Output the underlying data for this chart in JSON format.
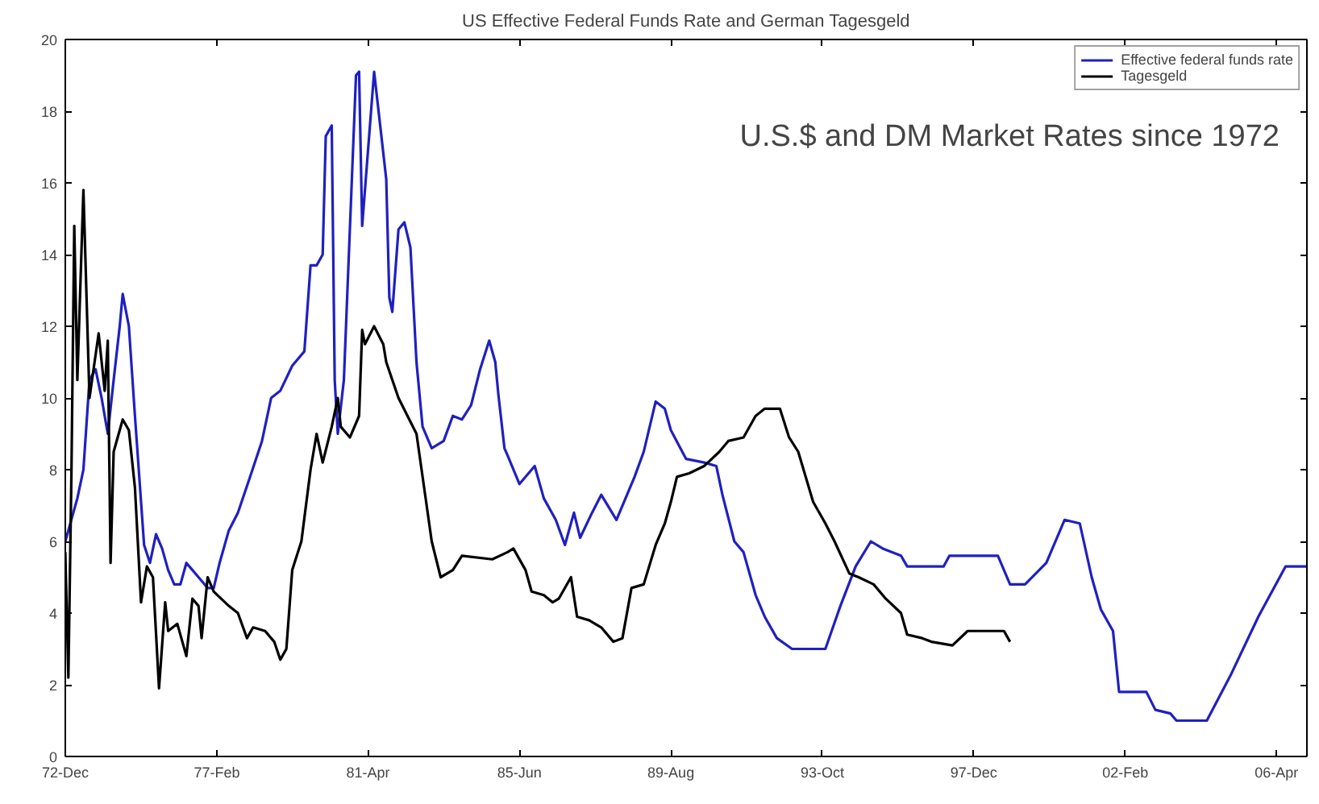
{
  "chart_data": {
    "type": "line",
    "title": "US Effective Federal Funds Rate and German Tagesgeld",
    "annotations": [
      "U.S.$ and DM Market Rates since 1972"
    ],
    "xlim": [
      "1972-12",
      "2007-02"
    ],
    "ylim": [
      0,
      20
    ],
    "xticks": [
      {
        "value": "1972-12",
        "label": "72-Dec"
      },
      {
        "value": "1977-02",
        "label": "77-Feb"
      },
      {
        "value": "1981-04",
        "label": "81-Apr"
      },
      {
        "value": "1985-06",
        "label": "85-Jun"
      },
      {
        "value": "1989-08",
        "label": "89-Aug"
      },
      {
        "value": "1993-10",
        "label": "93-Oct"
      },
      {
        "value": "1997-12",
        "label": "97-Dec"
      },
      {
        "value": "2002-02",
        "label": "02-Feb"
      },
      {
        "value": "2006-04",
        "label": "06-Apr"
      }
    ],
    "yticks": [
      0,
      2,
      4,
      6,
      8,
      10,
      12,
      14,
      16,
      18,
      20
    ],
    "grid": false,
    "legend": "top right",
    "marker": "none",
    "line_style": "solid",
    "series": [
      {
        "name": "Effective federal funds rate",
        "color": "#2020c0",
        "x": [
          "1972-12",
          "1973-04",
          "1973-06",
          "1973-08",
          "1973-10",
          "1973-12",
          "1974-02",
          "1974-04",
          "1974-06",
          "1974-07",
          "1974-09",
          "1974-11",
          "1975-02",
          "1975-04",
          "1975-06",
          "1975-08",
          "1975-10",
          "1975-12",
          "1976-02",
          "1976-04",
          "1976-06",
          "1976-08",
          "1976-11",
          "1977-01",
          "1977-03",
          "1977-06",
          "1977-09",
          "1978-01",
          "1978-05",
          "1978-08",
          "1978-11",
          "1979-03",
          "1979-07",
          "1979-09",
          "1979-11",
          "1980-01",
          "1980-02",
          "1980-04",
          "1980-05",
          "1980-06",
          "1980-08",
          "1980-12",
          "1981-01",
          "1981-02",
          "1981-06",
          "1981-10",
          "1981-11",
          "1981-12",
          "1982-02",
          "1982-04",
          "1982-06",
          "1982-08",
          "1982-10",
          "1983-01",
          "1983-05",
          "1983-08",
          "1983-11",
          "1984-02",
          "1984-05",
          "1984-08",
          "1984-10",
          "1984-11",
          "1985-01",
          "1985-02",
          "1985-06",
          "1985-11",
          "1986-02",
          "1986-06",
          "1986-09",
          "1986-12",
          "1987-02",
          "1987-06",
          "1987-09",
          "1988-02",
          "1988-08",
          "1988-11",
          "1989-03",
          "1989-06",
          "1989-08",
          "1990-01",
          "1990-07",
          "1990-11",
          "1991-01",
          "1991-05",
          "1991-08",
          "1991-12",
          "1992-03",
          "1992-07",
          "1992-12",
          "1993-11",
          "1994-04",
          "1994-09",
          "1995-02",
          "1995-06",
          "1995-12",
          "1996-02",
          "1997-02",
          "1997-04",
          "1998-08",
          "1998-12",
          "1999-05",
          "1999-12",
          "2000-06",
          "2000-11",
          "2001-03",
          "2001-06",
          "2001-10",
          "2001-12",
          "2002-09",
          "2002-12",
          "2003-05",
          "2003-07",
          "2004-05",
          "2005-01",
          "2005-10",
          "2006-07",
          "2007-02"
        ],
        "values": [
          6.0,
          7.2,
          8.0,
          10.5,
          10.8,
          10.0,
          9.0,
          10.5,
          12.0,
          12.9,
          12.0,
          9.5,
          5.9,
          5.4,
          6.2,
          5.8,
          5.2,
          4.8,
          4.8,
          5.4,
          5.2,
          5.0,
          4.7,
          4.7,
          5.4,
          6.3,
          6.8,
          7.8,
          8.8,
          10.0,
          10.2,
          10.9,
          11.3,
          13.7,
          13.7,
          14.0,
          17.3,
          17.6,
          10.5,
          9.0,
          10.5,
          19.0,
          19.1,
          14.8,
          19.1,
          16.1,
          12.8,
          12.4,
          14.7,
          14.9,
          14.2,
          11.0,
          9.2,
          8.6,
          8.8,
          9.5,
          9.4,
          9.8,
          10.8,
          11.6,
          11.0,
          10.1,
          8.6,
          8.4,
          7.6,
          8.1,
          7.2,
          6.6,
          5.9,
          6.8,
          6.1,
          6.8,
          7.3,
          6.6,
          7.8,
          8.5,
          9.9,
          9.7,
          9.1,
          8.3,
          8.2,
          8.1,
          7.3,
          6.0,
          5.7,
          4.5,
          3.9,
          3.3,
          3.0,
          3.0,
          4.2,
          5.3,
          6.0,
          5.8,
          5.6,
          5.3,
          5.3,
          5.6,
          5.6,
          4.8,
          4.8,
          5.4,
          6.6,
          6.5,
          5.0,
          4.1,
          3.5,
          1.8,
          1.8,
          1.3,
          1.2,
          1.0,
          1.0,
          2.3,
          3.9,
          5.3,
          5.3
        ]
      },
      {
        "name": "Tagesgeld",
        "color": "#000000",
        "x": [
          "1972-12",
          "1973-01",
          "1973-02",
          "1973-03",
          "1973-04",
          "1973-06",
          "1973-08",
          "1973-11",
          "1974-01",
          "1974-02",
          "1974-03",
          "1974-04",
          "1974-07",
          "1974-09",
          "1974-11",
          "1975-01",
          "1975-03",
          "1975-05",
          "1975-07",
          "1975-09",
          "1975-10",
          "1976-01",
          "1976-04",
          "1976-06",
          "1976-08",
          "1976-09",
          "1976-11",
          "1977-01",
          "1977-06",
          "1977-09",
          "1977-12",
          "1978-02",
          "1978-06",
          "1978-09",
          "1978-11",
          "1979-01",
          "1979-03",
          "1979-06",
          "1979-09",
          "1979-11",
          "1980-01",
          "1980-04",
          "1980-06",
          "1980-07",
          "1980-10",
          "1981-01",
          "1981-02",
          "1981-03",
          "1981-06",
          "1981-09",
          "1981-10",
          "1982-02",
          "1982-08",
          "1982-11",
          "1983-01",
          "1983-04",
          "1983-08",
          "1983-11",
          "1984-09",
          "1985-02",
          "1985-04",
          "1985-08",
          "1985-10",
          "1986-02",
          "1986-05",
          "1986-07",
          "1986-11",
          "1987-01",
          "1987-05",
          "1987-09",
          "1988-01",
          "1988-04",
          "1988-07",
          "1988-11",
          "1989-03",
          "1989-06",
          "1989-08",
          "1989-10",
          "1990-02",
          "1990-07",
          "1990-12",
          "1991-03",
          "1991-08",
          "1991-12",
          "1992-03",
          "1992-08",
          "1992-11",
          "1993-02",
          "1993-07",
          "1993-11",
          "1994-02",
          "1994-07",
          "1994-10",
          "1995-03",
          "1995-07",
          "1995-12",
          "1996-02",
          "1996-07",
          "1996-10",
          "1997-05",
          "1997-10",
          "1998-04",
          "1998-10",
          "1998-12"
        ],
        "values": [
          5.7,
          2.2,
          8.0,
          14.8,
          10.5,
          15.8,
          10.0,
          11.8,
          10.2,
          11.6,
          5.4,
          8.5,
          9.4,
          9.1,
          7.5,
          4.3,
          5.3,
          5.0,
          1.9,
          4.3,
          3.5,
          3.7,
          2.8,
          4.4,
          4.2,
          3.3,
          5.0,
          4.6,
          4.2,
          4.0,
          3.3,
          3.6,
          3.5,
          3.2,
          2.7,
          3.0,
          5.2,
          6.0,
          8.0,
          9.0,
          8.2,
          9.2,
          10.0,
          9.2,
          8.9,
          9.5,
          11.9,
          11.5,
          12.0,
          11.5,
          11.0,
          10.0,
          9.0,
          7.2,
          6.0,
          5.0,
          5.2,
          5.6,
          5.5,
          5.7,
          5.8,
          5.2,
          4.6,
          4.5,
          4.3,
          4.4,
          5.0,
          3.9,
          3.8,
          3.6,
          3.2,
          3.3,
          4.7,
          4.8,
          5.9,
          6.5,
          7.1,
          7.8,
          7.9,
          8.1,
          8.5,
          8.8,
          8.9,
          9.5,
          9.7,
          9.7,
          8.9,
          8.5,
          7.1,
          6.5,
          6.0,
          5.1,
          5.0,
          4.8,
          4.4,
          4.0,
          3.4,
          3.3,
          3.2,
          3.1,
          3.5,
          3.5,
          3.5,
          3.2
        ]
      }
    ]
  }
}
